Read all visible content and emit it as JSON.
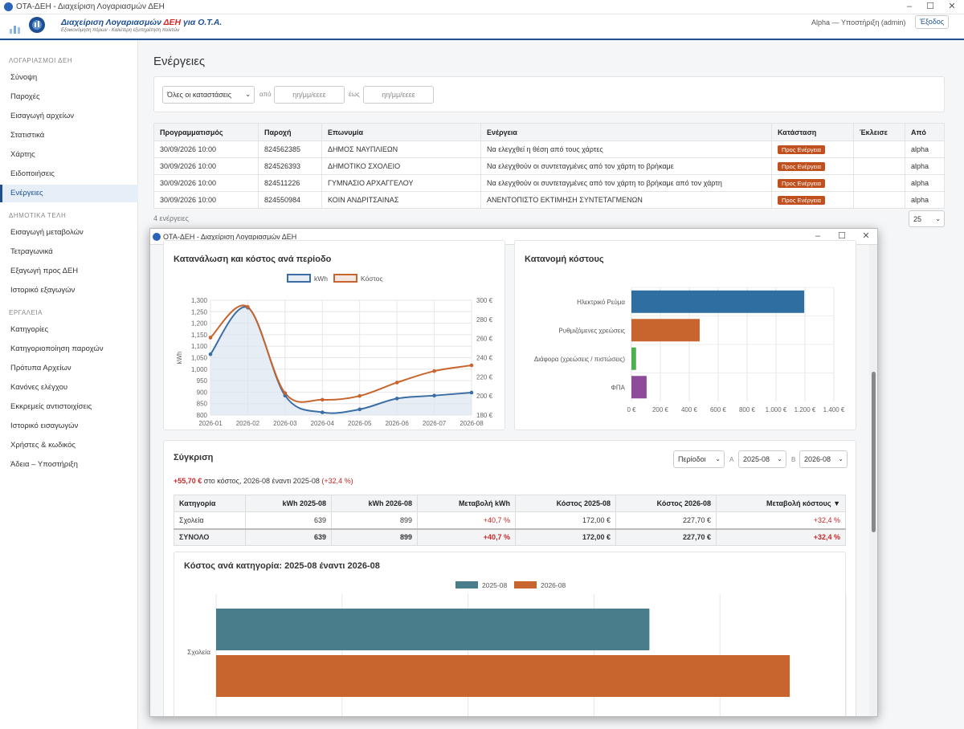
{
  "window": {
    "title": "ΟΤΑ-ΔΕΗ - Διαχείριση Λογαριασμών ΔΕΗ"
  },
  "header": {
    "logo_title_pre": "Διαχείριση Λογαριασμών ",
    "logo_title_dei": "ΔΕΗ",
    "logo_title_post": " για Ο.Τ.Α.",
    "logo_subtitle": "Εξοικονόμηση πόρων - Καλύτερη εξυπηρέτηση πολιτών",
    "user": "Alpha — Υποστήριξη (admin)",
    "logout": "Έξοδος"
  },
  "sidebar": {
    "sections": [
      {
        "title": "ΛΟΓΑΡΙΑΣΜΟΙ ΔΕΗ",
        "items": [
          "Σύνοψη",
          "Παροχές",
          "Εισαγωγή αρχείων",
          "Στατιστικά",
          "Χάρτης",
          "Ειδοποιήσεις",
          "Ενέργειες"
        ]
      },
      {
        "title": "ΔΗΜΟΤΙΚΑ ΤΕΛΗ",
        "items": [
          "Εισαγωγή μεταβολών",
          "Τετραγωνικά",
          "Εξαγωγή προς ΔΕΗ",
          "Ιστορικό εξαγωγών"
        ]
      },
      {
        "title": "ΕΡΓΑΛΕΙΑ",
        "items": [
          "Κατηγορίες",
          "Κατηγοριοποίηση παροχών",
          "Πρότυπα Αρχείων",
          "Κανόνες ελέγχου",
          "Εκκρεμείς αντιστοιχίσεις",
          "Ιστορικό εισαγωγών",
          "Χρήστες & κωδικός",
          "Άδεια – Υποστήριξη"
        ]
      }
    ],
    "active": "Ενέργειες"
  },
  "page": {
    "title": "Ενέργειες",
    "filters": {
      "status": "Όλες οι καταστάσεις",
      "from_label": "από",
      "from_placeholder": "ηη/μμ/εεεε",
      "to_label": "έως",
      "to_placeholder": "ηη/μμ/εεεε"
    },
    "table": {
      "headers": [
        "Προγραμματισμός",
        "Παροχή",
        "Επωνυμία",
        "Ενέργεια",
        "Κατάσταση",
        "Έκλεισε",
        "Από"
      ],
      "rows": [
        [
          "30/09/2026 10:00",
          "824562385",
          "ΔΗΜΟΣ ΝΑΥΠΛΙΕΩΝ",
          "Να ελεγχθεί η θέση από τους χάρτες",
          "Προς Ενέργεια",
          "",
          "alpha"
        ],
        [
          "30/09/2026 10:00",
          "824526393",
          "ΔΗΜΟΤΙΚΟ ΣΧΟΛΕΙΟ",
          "Να ελεγχθούν οι συντεταγμένες από τον χάρτη το βρήκαμε",
          "Προς Ενέργεια",
          "",
          "alpha"
        ],
        [
          "30/09/2026 10:00",
          "824511226",
          "ΓΥΜΝΑΣΙΟ ΑΡΧΑΓΓΕΛΟΥ",
          "Να ελεγχθούν οι συντεταγμένες από τον χάρτη το βρήκαμε από τον χάρτη",
          "Προς Ενέργεια",
          "",
          "alpha"
        ],
        [
          "30/09/2026 10:00",
          "824550984",
          "ΚΟΙΝ ΑΝΔΡΙΤΣΑΙΝΑΣ",
          "ΑΝΕΝΤΟΠΙΣΤΟ ΕΚΤΙΜΗΣΗ ΣΥΝΤΕΤΑΓΜΕΝΩΝ",
          "Προς Ενέργεια",
          "",
          "alpha"
        ]
      ]
    },
    "count": "4 ενέργειες",
    "page_size": "25"
  },
  "popup": {
    "title": "ΟΤΑ-ΔΕΗ - Διαχείριση Λογαριασμών ΔΕΗ",
    "comparison": {
      "title": "Σύγκριση",
      "mode": "Περίοδοι",
      "a_label": "A",
      "a_value": "2025-08",
      "b_label": "B",
      "b_value": "2026-08",
      "summary_amount": "+55,70 €",
      "summary_text": " στο κόστος, 2026-08 έναντι 2025-08 ",
      "summary_pct": "(+32,4 %)",
      "headers": [
        "Κατηγορία",
        "kWh 2025-08",
        "kWh 2026-08",
        "Μεταβολή kWh",
        "Κόστος 2025-08",
        "Κόστος 2026-08",
        "Μεταβολή κόστους ▼"
      ],
      "rows": [
        [
          "Σχολεία",
          "639",
          "899",
          "+40,7 %",
          "172,00 €",
          "227,70 €",
          "+32,4 %"
        ]
      ],
      "total": [
        "ΣΥΝΟΛΟ",
        "639",
        "899",
        "+40,7 %",
        "172,00 €",
        "227,70 €",
        "+32,4 %"
      ]
    }
  },
  "colors": {
    "brand": "#1d4f91",
    "kwh": "#3a6ea5",
    "cost": "#c8642d",
    "badge": "#c0501e",
    "red": "#c62828"
  },
  "chart_data": [
    {
      "type": "line",
      "title": "Κατανάλωση και κόστος ανά περίοδο",
      "x": [
        "2026-01",
        "2026-02",
        "2026-03",
        "2026-04",
        "2026-05",
        "2026-06",
        "2026-07",
        "2026-08"
      ],
      "series": [
        {
          "name": "kWh",
          "axis": "left",
          "values": [
            1065,
            1268,
            885,
            812,
            825,
            872,
            885,
            898
          ]
        },
        {
          "name": "Κόστος",
          "axis": "right",
          "values": [
            261,
            293,
            203,
            196,
            200,
            214,
            226,
            232
          ]
        }
      ],
      "ylabel": "kWh",
      "ylim": [
        800,
        1300
      ],
      "yticks": [
        "800",
        "850",
        "900",
        "950",
        "1,000",
        "1,050",
        "1,100",
        "1,150",
        "1,200",
        "1,250",
        "1,300"
      ],
      "y2lim": [
        180,
        300
      ],
      "y2ticks": [
        "180 €",
        "200 €",
        "220 €",
        "240 €",
        "260 €",
        "280 €",
        "300 €"
      ],
      "legend": "top",
      "grid": true
    },
    {
      "type": "bar",
      "orientation": "horizontal",
      "title": "Κατανομή κόστους",
      "categories": [
        "Ηλεκτρικό Ρεύμα",
        "Ρυθμιζόμενες χρεώσεις",
        "Διάφορα (χρεώσεις / πιστώσεις)",
        "ΦΠΑ"
      ],
      "values": [
        1195,
        472,
        32,
        105
      ],
      "colors": [
        "#2f6ea0",
        "#c8642d",
        "#4caf50",
        "#8e4b9a"
      ],
      "xlim": [
        0,
        1400
      ],
      "xticks": [
        "0 €",
        "200 €",
        "400 €",
        "600 €",
        "800 €",
        "1.000 €",
        "1.200 €",
        "1.400 €"
      ],
      "grid": true
    },
    {
      "type": "bar",
      "orientation": "horizontal",
      "title": "Κόστος ανά κατηγορία: 2025-08 έναντι 2026-08",
      "categories": [
        "Σχολεία"
      ],
      "series": [
        {
          "name": "2025-08",
          "values": [
            172.0
          ],
          "color": "#4a7d8c"
        },
        {
          "name": "2026-08",
          "values": [
            227.7
          ],
          "color": "#c8642d"
        }
      ],
      "xlim": [
        0,
        250
      ],
      "legend": "top",
      "grid": true
    }
  ]
}
